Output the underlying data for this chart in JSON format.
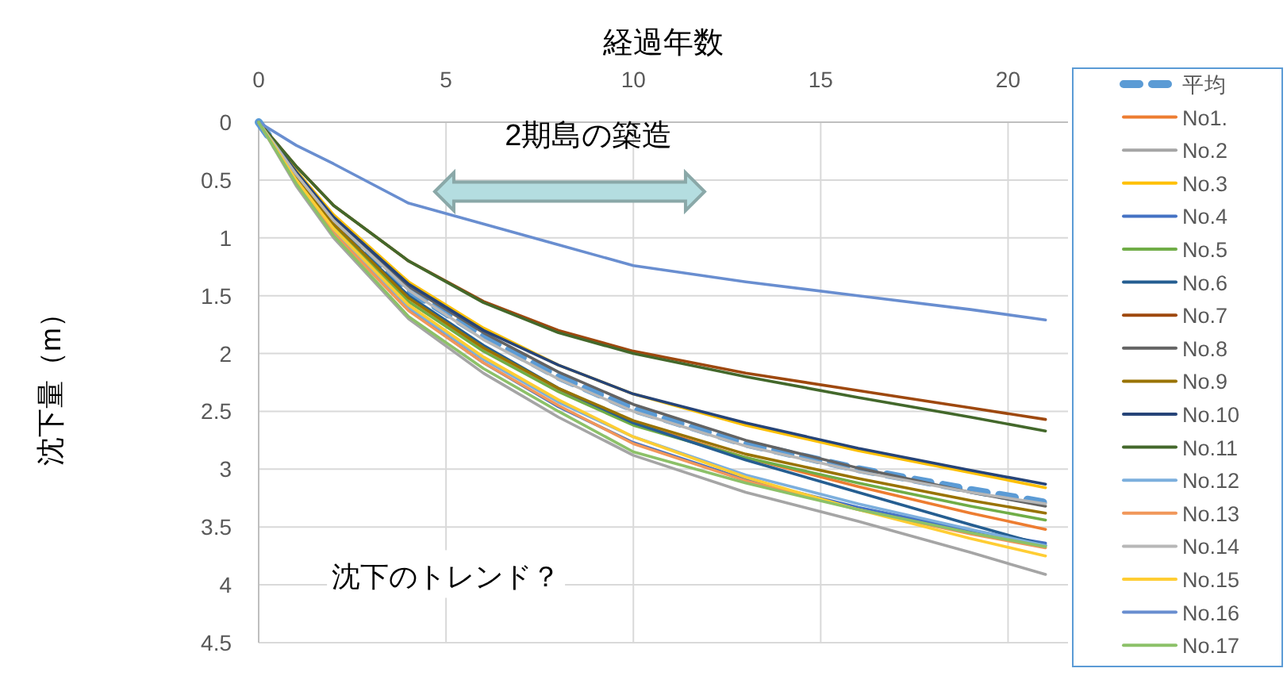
{
  "chart_data": {
    "type": "line",
    "xlabel": "経過年数",
    "ylabel": "沈下量（m）",
    "x": [
      0,
      1,
      2,
      4,
      6,
      8,
      10,
      13,
      16,
      19,
      21
    ],
    "xlim": [
      0,
      21.6
    ],
    "xticks": [
      0,
      5,
      10,
      15,
      20
    ],
    "ylim": [
      4.5,
      0
    ],
    "yticks": [
      0,
      0.5,
      1,
      1.5,
      2,
      2.5,
      3,
      3.5,
      4,
      4.5
    ],
    "grid": true,
    "legend": "right",
    "marker": "none",
    "annotations": [
      "2期島の築造",
      "沈下のトレンド？"
    ],
    "series": [
      {
        "name": "平均",
        "color": "#5b9bd5",
        "line_style": "dashed",
        "values": [
          0,
          0.45,
          0.85,
          1.45,
          1.85,
          2.2,
          2.48,
          2.78,
          3.0,
          3.18,
          3.29
        ]
      },
      {
        "name": "No1.",
        "color": "#ed7d31",
        "values": [
          0,
          0.48,
          0.9,
          1.55,
          1.97,
          2.32,
          2.6,
          2.9,
          3.15,
          3.38,
          3.52
        ]
      },
      {
        "name": "No.2",
        "color": "#a5a5a5",
        "values": [
          0,
          0.55,
          1.0,
          1.7,
          2.17,
          2.55,
          2.88,
          3.2,
          3.45,
          3.72,
          3.91
        ]
      },
      {
        "name": "No.3",
        "color": "#ffc000",
        "values": [
          0,
          0.42,
          0.8,
          1.38,
          1.78,
          2.1,
          2.35,
          2.62,
          2.84,
          3.03,
          3.16
        ]
      },
      {
        "name": "No.4",
        "color": "#4472c4",
        "values": [
          0,
          0.5,
          0.94,
          1.62,
          2.08,
          2.46,
          2.77,
          3.09,
          3.33,
          3.53,
          3.64
        ]
      },
      {
        "name": "No.5",
        "color": "#70ad47",
        "values": [
          0,
          0.48,
          0.9,
          1.55,
          1.98,
          2.33,
          2.62,
          2.9,
          3.12,
          3.32,
          3.44
        ]
      },
      {
        "name": "No.6",
        "color": "#255e91",
        "values": [
          0,
          0.47,
          0.88,
          1.5,
          1.93,
          2.3,
          2.6,
          2.92,
          3.2,
          3.48,
          3.66
        ]
      },
      {
        "name": "No.7",
        "color": "#9e480e",
        "values": [
          0,
          0.38,
          0.72,
          1.2,
          1.55,
          1.8,
          1.98,
          2.17,
          2.32,
          2.47,
          2.57
        ]
      },
      {
        "name": "No.8",
        "color": "#636363",
        "values": [
          0,
          0.44,
          0.83,
          1.42,
          1.82,
          2.16,
          2.44,
          2.75,
          2.99,
          3.2,
          3.32
        ]
      },
      {
        "name": "No.9",
        "color": "#997300",
        "values": [
          0,
          0.47,
          0.88,
          1.52,
          1.95,
          2.3,
          2.58,
          2.87,
          3.08,
          3.27,
          3.38
        ]
      },
      {
        "name": "No.10",
        "color": "#264478",
        "values": [
          0,
          0.43,
          0.82,
          1.4,
          1.8,
          2.1,
          2.35,
          2.6,
          2.82,
          3.01,
          3.13
        ]
      },
      {
        "name": "No.11",
        "color": "#43682b",
        "values": [
          0,
          0.38,
          0.72,
          1.2,
          1.56,
          1.82,
          2.0,
          2.2,
          2.38,
          2.55,
          2.67
        ]
      },
      {
        "name": "No.12",
        "color": "#7cafdd",
        "values": [
          0,
          0.5,
          0.93,
          1.6,
          2.05,
          2.42,
          2.72,
          3.05,
          3.3,
          3.52,
          3.66
        ]
      },
      {
        "name": "No.13",
        "color": "#f1975a",
        "values": [
          0,
          0.52,
          0.96,
          1.63,
          2.08,
          2.45,
          2.78,
          3.1,
          3.35,
          3.56,
          3.68
        ]
      },
      {
        "name": "No.14",
        "color": "#b7b7b7",
        "values": [
          0,
          0.45,
          0.85,
          1.45,
          1.88,
          2.22,
          2.5,
          2.8,
          3.02,
          3.2,
          3.3
        ]
      },
      {
        "name": "No.15",
        "color": "#ffcd33",
        "values": [
          0,
          0.5,
          0.92,
          1.58,
          2.03,
          2.4,
          2.72,
          3.07,
          3.35,
          3.6,
          3.75
        ]
      },
      {
        "name": "No.16",
        "color": "#698ed0",
        "values": [
          0,
          0.2,
          0.36,
          0.7,
          0.88,
          1.06,
          1.24,
          1.38,
          1.5,
          1.62,
          1.71
        ]
      },
      {
        "name": "No.17",
        "color": "#8cc168",
        "values": [
          0,
          0.53,
          0.98,
          1.68,
          2.13,
          2.5,
          2.85,
          3.12,
          3.35,
          3.55,
          3.67
        ]
      }
    ]
  }
}
